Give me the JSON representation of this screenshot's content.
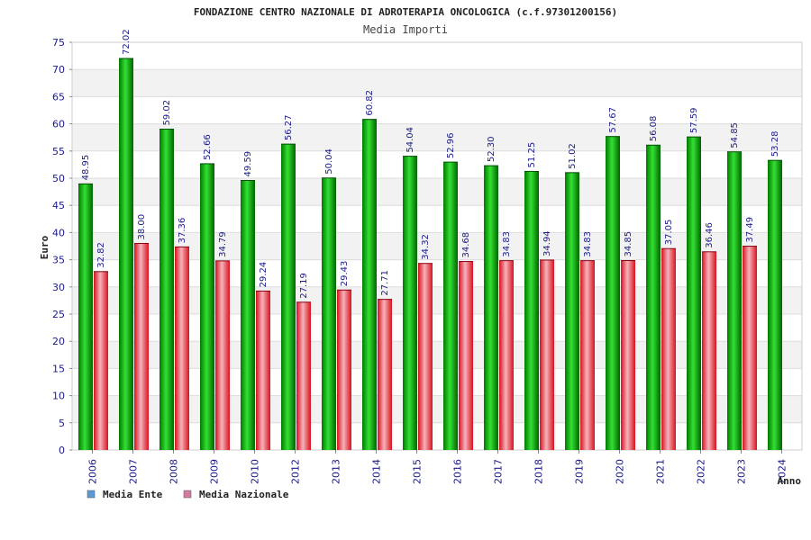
{
  "chart_data": {
    "type": "bar",
    "title": "FONDAZIONE CENTRO NAZIONALE DI ADROTERAPIA ONCOLOGICA (c.f.97301200156)",
    "subtitle": "Media Importi",
    "xlabel": "Anno",
    "ylabel": "Euro",
    "ylim": [
      0,
      75
    ],
    "ytick_step": 5,
    "grid": "horizontal bands",
    "legend_position": "bottom-left",
    "categories": [
      "2006",
      "2007",
      "2008",
      "2009",
      "2010",
      "2012",
      "2013",
      "2014",
      "2015",
      "2016",
      "2017",
      "2018",
      "2019",
      "2020",
      "2021",
      "2022",
      "2023",
      "2024"
    ],
    "series": [
      {
        "name": "Media Ente",
        "color": "#00b400",
        "legend_color": "#5b9bd5",
        "values": [
          48.95,
          72.02,
          59.02,
          52.66,
          49.59,
          56.27,
          50.04,
          60.82,
          54.04,
          52.96,
          52.3,
          51.25,
          51.02,
          57.67,
          56.08,
          57.59,
          54.85,
          53.28
        ],
        "labels": [
          "48.95",
          "72.02",
          "59.02",
          "52.66",
          "49.59",
          "56.27",
          "50.04",
          "60.82",
          "54.04",
          "52.96",
          "52.30",
          "51.25",
          "51.02",
          "57.67",
          "56.08",
          "57.59",
          "54.85",
          "53.28"
        ]
      },
      {
        "name": "Media Nazionale",
        "color": "#e8202a",
        "legend_color": "#d77aa0",
        "values": [
          32.82,
          38.0,
          37.36,
          34.79,
          29.24,
          27.19,
          29.43,
          27.71,
          34.32,
          34.68,
          34.83,
          34.94,
          34.83,
          34.85,
          37.05,
          36.46,
          37.49,
          null
        ],
        "labels": [
          "32.82",
          "38.00",
          "37.36",
          "34.79",
          "29.24",
          "27.19",
          "29.43",
          "27.71",
          "34.32",
          "34.68",
          "34.83",
          "34.94",
          "34.83",
          "34.85",
          "37.05",
          "36.46",
          "37.49",
          ""
        ]
      }
    ]
  }
}
